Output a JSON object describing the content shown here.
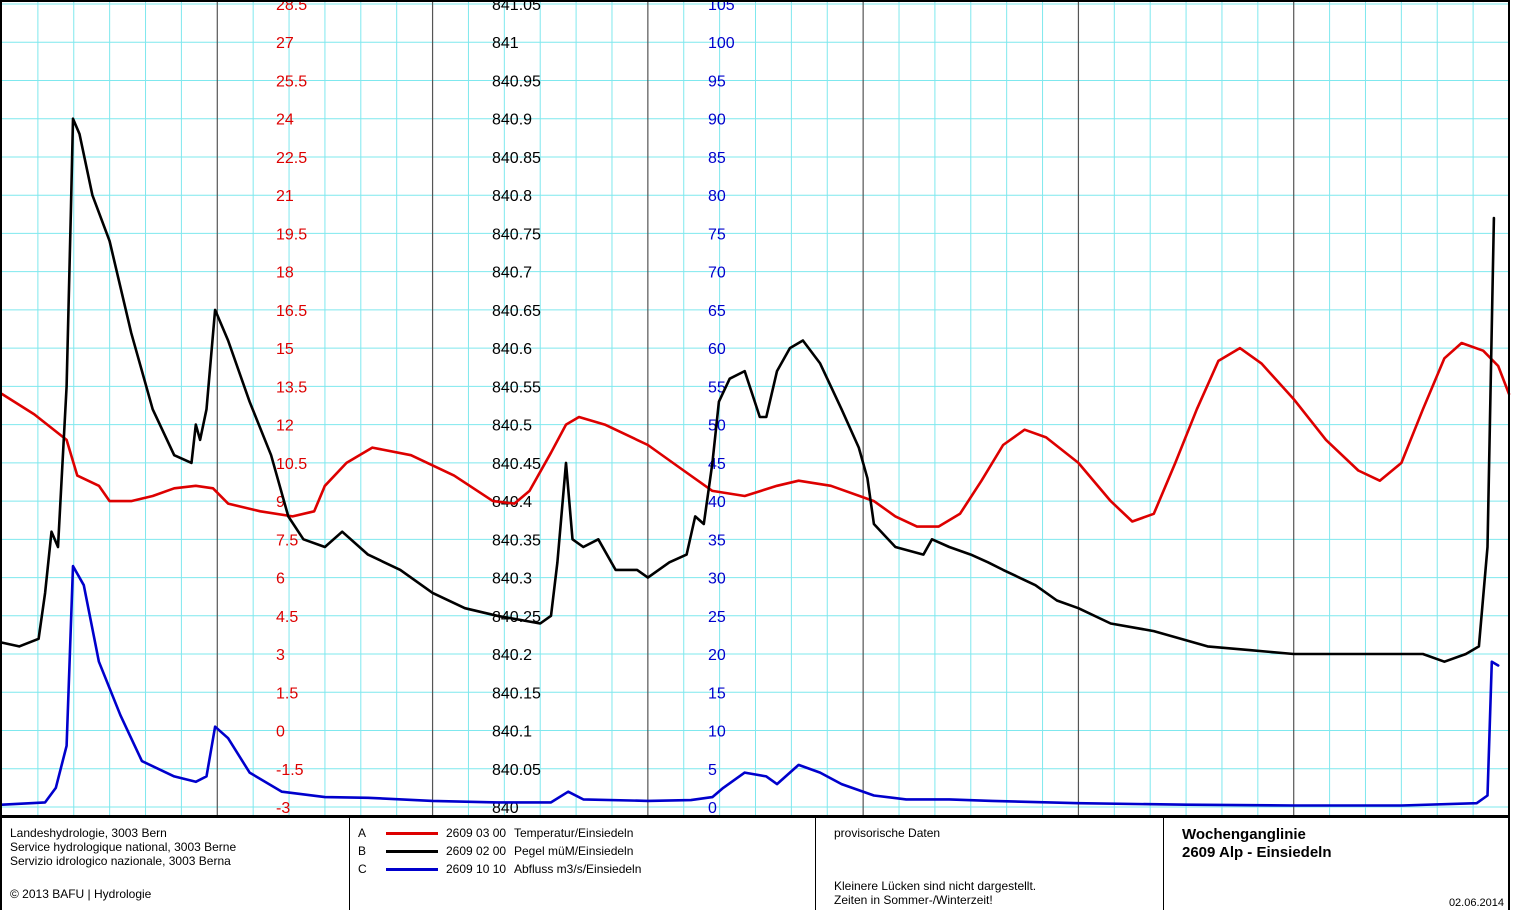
{
  "chart_data": {
    "type": "line",
    "x_domain": [
      0,
      7
    ],
    "axes": [
      {
        "id": "temp",
        "color": "#dd0000",
        "range": [
          -3,
          28.5
        ],
        "step": 1.5,
        "ticks": [
          "-3",
          "-1.5",
          "0",
          "1.5",
          "3",
          "4.5",
          "6",
          "7.5",
          "9",
          "10.5",
          "12",
          "13.5",
          "15",
          "16.5",
          "18",
          "19.5",
          "21",
          "22.5",
          "24",
          "25.5",
          "27",
          "28.5"
        ]
      },
      {
        "id": "level",
        "color": "#000000",
        "range": [
          840,
          841.05
        ],
        "step": 0.05,
        "ticks": [
          "840",
          "840.05",
          "840.1",
          "840.15",
          "840.2",
          "840.25",
          "840.3",
          "840.35",
          "840.4",
          "840.45",
          "840.5",
          "840.55",
          "840.6",
          "840.65",
          "840.7",
          "840.75",
          "840.8",
          "840.85",
          "840.9",
          "840.95",
          "841",
          "841.05"
        ]
      },
      {
        "id": "flow",
        "color": "#0000cc",
        "range": [
          0,
          105
        ],
        "step": 5,
        "ticks": [
          "0",
          "5",
          "10",
          "15",
          "20",
          "25",
          "30",
          "35",
          "40",
          "45",
          "50",
          "55",
          "60",
          "65",
          "70",
          "75",
          "80",
          "85",
          "90",
          "95",
          "100",
          "105"
        ]
      }
    ],
    "series": [
      {
        "id": "A",
        "axis": "temp",
        "color": "#dd0000",
        "points": [
          [
            0,
            13.2
          ],
          [
            0.15,
            12.4
          ],
          [
            0.3,
            11.4
          ],
          [
            0.35,
            10.0
          ],
          [
            0.45,
            9.6
          ],
          [
            0.5,
            9.0
          ],
          [
            0.6,
            9.0
          ],
          [
            0.7,
            9.2
          ],
          [
            0.8,
            9.5
          ],
          [
            0.9,
            9.6
          ],
          [
            0.98,
            9.5
          ],
          [
            1.05,
            8.9
          ],
          [
            1.2,
            8.6
          ],
          [
            1.35,
            8.4
          ],
          [
            1.45,
            8.6
          ],
          [
            1.5,
            9.6
          ],
          [
            1.6,
            10.5
          ],
          [
            1.72,
            11.1
          ],
          [
            1.9,
            10.8
          ],
          [
            2.1,
            10.0
          ],
          [
            2.28,
            9.0
          ],
          [
            2.38,
            8.9
          ],
          [
            2.45,
            9.4
          ],
          [
            2.55,
            10.9
          ],
          [
            2.62,
            12.0
          ],
          [
            2.68,
            12.3
          ],
          [
            2.8,
            12.0
          ],
          [
            3.0,
            11.2
          ],
          [
            3.15,
            10.3
          ],
          [
            3.3,
            9.4
          ],
          [
            3.45,
            9.2
          ],
          [
            3.6,
            9.6
          ],
          [
            3.7,
            9.8
          ],
          [
            3.85,
            9.6
          ],
          [
            4.05,
            9.0
          ],
          [
            4.15,
            8.4
          ],
          [
            4.25,
            8.0
          ],
          [
            4.35,
            8.0
          ],
          [
            4.45,
            8.5
          ],
          [
            4.55,
            9.8
          ],
          [
            4.65,
            11.2
          ],
          [
            4.75,
            11.8
          ],
          [
            4.85,
            11.5
          ],
          [
            5.0,
            10.5
          ],
          [
            5.15,
            9.0
          ],
          [
            5.25,
            8.2
          ],
          [
            5.35,
            8.5
          ],
          [
            5.45,
            10.5
          ],
          [
            5.55,
            12.6
          ],
          [
            5.65,
            14.5
          ],
          [
            5.75,
            15.0
          ],
          [
            5.85,
            14.4
          ],
          [
            6.0,
            13.0
          ],
          [
            6.15,
            11.4
          ],
          [
            6.3,
            10.2
          ],
          [
            6.4,
            9.8
          ],
          [
            6.5,
            10.5
          ],
          [
            6.6,
            12.6
          ],
          [
            6.7,
            14.6
          ],
          [
            6.78,
            15.2
          ],
          [
            6.88,
            14.9
          ],
          [
            6.95,
            14.3
          ],
          [
            7.0,
            13.2
          ]
        ]
      },
      {
        "id": "B",
        "axis": "level",
        "color": "#000000",
        "points": [
          [
            0,
            840.215
          ],
          [
            0.08,
            840.21
          ],
          [
            0.17,
            840.22
          ],
          [
            0.2,
            840.28
          ],
          [
            0.23,
            840.36
          ],
          [
            0.26,
            840.34
          ],
          [
            0.3,
            840.55
          ],
          [
            0.32,
            840.78
          ],
          [
            0.33,
            840.9
          ],
          [
            0.36,
            840.88
          ],
          [
            0.42,
            840.8
          ],
          [
            0.5,
            840.74
          ],
          [
            0.6,
            840.62
          ],
          [
            0.7,
            840.52
          ],
          [
            0.8,
            840.46
          ],
          [
            0.88,
            840.45
          ],
          [
            0.9,
            840.5
          ],
          [
            0.92,
            840.48
          ],
          [
            0.95,
            840.52
          ],
          [
            0.99,
            840.65
          ],
          [
            1.05,
            840.61
          ],
          [
            1.15,
            840.53
          ],
          [
            1.25,
            840.46
          ],
          [
            1.33,
            840.38
          ],
          [
            1.4,
            840.35
          ],
          [
            1.5,
            840.34
          ],
          [
            1.58,
            840.36
          ],
          [
            1.7,
            840.33
          ],
          [
            1.85,
            840.31
          ],
          [
            2.0,
            840.28
          ],
          [
            2.15,
            840.26
          ],
          [
            2.3,
            840.25
          ],
          [
            2.5,
            840.24
          ],
          [
            2.55,
            840.25
          ],
          [
            2.58,
            840.32
          ],
          [
            2.62,
            840.45
          ],
          [
            2.65,
            840.35
          ],
          [
            2.7,
            840.34
          ],
          [
            2.77,
            840.35
          ],
          [
            2.85,
            840.31
          ],
          [
            2.95,
            840.31
          ],
          [
            3.0,
            840.3
          ],
          [
            3.1,
            840.32
          ],
          [
            3.18,
            840.33
          ],
          [
            3.22,
            840.38
          ],
          [
            3.26,
            840.37
          ],
          [
            3.3,
            840.45
          ],
          [
            3.33,
            840.53
          ],
          [
            3.38,
            840.56
          ],
          [
            3.45,
            840.57
          ],
          [
            3.52,
            840.51
          ],
          [
            3.55,
            840.51
          ],
          [
            3.6,
            840.57
          ],
          [
            3.66,
            840.6
          ],
          [
            3.72,
            840.61
          ],
          [
            3.8,
            840.58
          ],
          [
            3.9,
            840.52
          ],
          [
            3.98,
            840.47
          ],
          [
            4.02,
            840.43
          ],
          [
            4.05,
            840.37
          ],
          [
            4.15,
            840.34
          ],
          [
            4.28,
            840.33
          ],
          [
            4.32,
            840.35
          ],
          [
            4.4,
            840.34
          ],
          [
            4.5,
            840.33
          ],
          [
            4.58,
            840.32
          ],
          [
            4.65,
            840.31
          ],
          [
            4.8,
            840.29
          ],
          [
            4.9,
            840.27
          ],
          [
            5.0,
            840.26
          ],
          [
            5.15,
            840.24
          ],
          [
            5.35,
            840.23
          ],
          [
            5.6,
            840.21
          ],
          [
            5.8,
            840.205
          ],
          [
            6.0,
            840.2
          ],
          [
            6.3,
            840.2
          ],
          [
            6.55,
            840.2
          ],
          [
            6.6,
            840.2
          ],
          [
            6.7,
            840.19
          ],
          [
            6.8,
            840.2
          ],
          [
            6.86,
            840.21
          ],
          [
            6.9,
            840.34
          ],
          [
            6.93,
            840.77
          ]
        ]
      },
      {
        "id": "C",
        "axis": "flow",
        "color": "#0000cc",
        "points": [
          [
            0,
            0.3
          ],
          [
            0.2,
            0.6
          ],
          [
            0.25,
            2.5
          ],
          [
            0.3,
            8
          ],
          [
            0.33,
            31.5
          ],
          [
            0.38,
            29
          ],
          [
            0.45,
            19
          ],
          [
            0.55,
            12
          ],
          [
            0.65,
            6
          ],
          [
            0.8,
            4
          ],
          [
            0.9,
            3.3
          ],
          [
            0.95,
            4
          ],
          [
            0.99,
            10.5
          ],
          [
            1.05,
            9
          ],
          [
            1.15,
            4.5
          ],
          [
            1.3,
            2
          ],
          [
            1.5,
            1.3
          ],
          [
            1.7,
            1.2
          ],
          [
            2.0,
            0.8
          ],
          [
            2.3,
            0.6
          ],
          [
            2.55,
            0.6
          ],
          [
            2.63,
            2
          ],
          [
            2.7,
            1
          ],
          [
            3.0,
            0.8
          ],
          [
            3.2,
            0.9
          ],
          [
            3.3,
            1.3
          ],
          [
            3.35,
            2.5
          ],
          [
            3.45,
            4.5
          ],
          [
            3.55,
            4
          ],
          [
            3.6,
            3
          ],
          [
            3.7,
            5.5
          ],
          [
            3.8,
            4.5
          ],
          [
            3.9,
            3
          ],
          [
            4.05,
            1.5
          ],
          [
            4.2,
            1
          ],
          [
            4.4,
            1
          ],
          [
            4.6,
            0.8
          ],
          [
            5.0,
            0.5
          ],
          [
            5.5,
            0.3
          ],
          [
            6.0,
            0.2
          ],
          [
            6.5,
            0.2
          ],
          [
            6.85,
            0.5
          ],
          [
            6.9,
            1.5
          ],
          [
            6.92,
            19
          ],
          [
            6.95,
            18.5
          ]
        ]
      }
    ]
  },
  "footer": {
    "org_line1": "Landeshydrologie, 3003 Bern",
    "org_line2": "Service hydrologique national, 3003 Berne",
    "org_line3": "Servizio idrologico nazionale, 3003 Berna",
    "copyright": "© 2013 BAFU | Hydrologie",
    "legend": [
      {
        "letter": "A",
        "code": "2609 03 00",
        "label": "Temperatur/Einsiedeln",
        "color": "#dd0000"
      },
      {
        "letter": "B",
        "code": "2609 02 00",
        "label": "Pegel müM/Einsiedeln",
        "color": "#000000"
      },
      {
        "letter": "C",
        "code": "2609 10 10",
        "label": "Abfluss m3/s/Einsiedeln",
        "color": "#0000cc"
      }
    ],
    "notice": "provisorische Daten",
    "note_line1": "Kleinere Lücken sind nicht dargestellt.",
    "note_line2": "Zeiten in Sommer-/Winterzeit!",
    "title_line1": "Wochenganglinie",
    "title_line2": "2609 Alp - Einsiedeln",
    "date": "02.06.2014"
  }
}
